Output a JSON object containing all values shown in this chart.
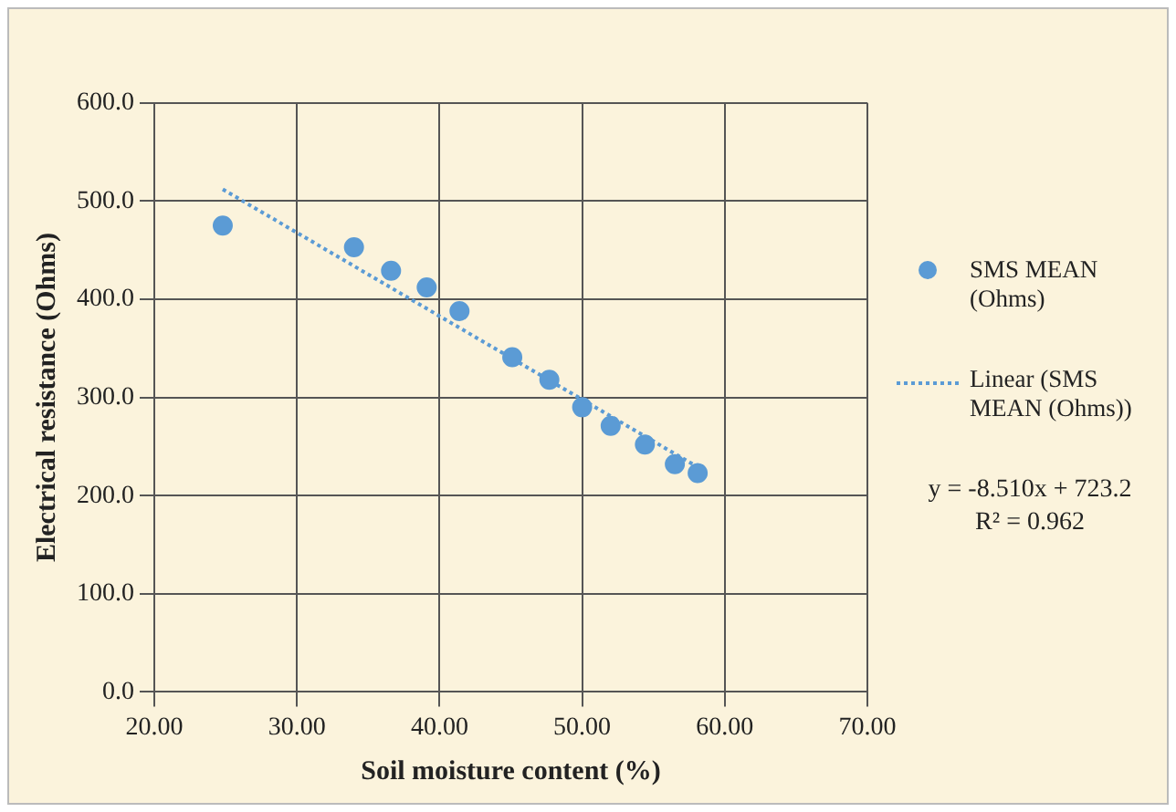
{
  "chart_data": {
    "type": "scatter",
    "xlabel": "Soil moisture content (%)",
    "ylabel": "Electrical resistance (Ohms)",
    "xlim": [
      20,
      70
    ],
    "xticks": [
      {
        "value": 20,
        "label": "20.00"
      },
      {
        "value": 30,
        "label": "30.00"
      },
      {
        "value": 40,
        "label": "40.00"
      },
      {
        "value": 50,
        "label": "50.00"
      },
      {
        "value": 60,
        "label": "60.00"
      },
      {
        "value": 70,
        "label": "70.00"
      }
    ],
    "ylim": [
      0,
      600
    ],
    "yticks": [
      {
        "value": 0,
        "label": "0.0"
      },
      {
        "value": 100,
        "label": "100.0"
      },
      {
        "value": 200,
        "label": "200.0"
      },
      {
        "value": 300,
        "label": "300.0"
      },
      {
        "value": 400,
        "label": "400.0"
      },
      {
        "value": 500,
        "label": "500.0"
      },
      {
        "value": 600,
        "label": "600.0"
      }
    ],
    "grid": true,
    "legend": "right",
    "marker": "circle",
    "series": [
      {
        "name": "SMS MEAN (Ohms)",
        "color": "#5b9bd5",
        "x": [
          24.8,
          34.0,
          36.6,
          39.1,
          41.4,
          45.1,
          47.7,
          50.0,
          52.0,
          54.4,
          56.5,
          58.1
        ],
        "values": [
          475,
          453,
          429,
          412,
          388,
          341,
          318,
          290,
          271,
          252,
          232,
          223
        ]
      },
      {
        "name": "Linear (SMS MEAN (Ohms))",
        "type": "line",
        "color": "#5b9bd5",
        "line_style": "dotted",
        "marker": "none",
        "x": [
          24.8,
          58.1
        ],
        "values": [
          512,
          229
        ]
      }
    ],
    "annotations": [
      "y = -8.510x + 723.2",
      "R² = 0.962"
    ]
  }
}
